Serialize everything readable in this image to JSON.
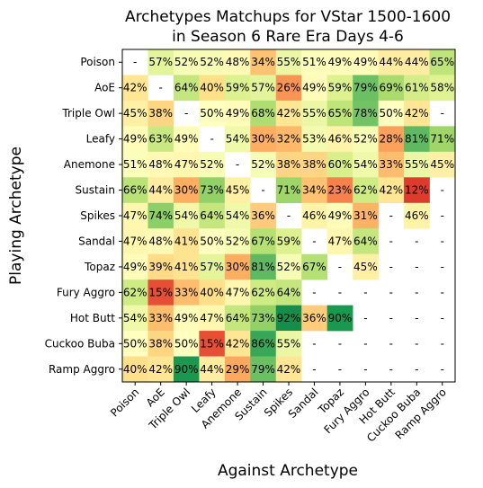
{
  "chart_data": {
    "type": "heatmap",
    "title": "Archetypes Matchups for VStar 1500-1600\nin Season 6 Rare Era Days 4-6",
    "xlabel": "Against Archetype",
    "ylabel": "Playing Archetype",
    "categories": [
      "Poison",
      "AoE",
      "Triple Owl",
      "Leafy",
      "Anemone",
      "Sustain",
      "Spikes",
      "Sandal",
      "Topaz",
      "Fury Aggro",
      "Hot Butt",
      "Cuckoo Buba",
      "Ramp Aggro"
    ],
    "value_range": [
      0,
      100
    ],
    "colormap": "RdYlGn",
    "missing_label": "-",
    "values": [
      [
        null,
        57,
        52,
        52,
        48,
        34,
        55,
        51,
        49,
        49,
        44,
        44,
        65
      ],
      [
        42,
        null,
        64,
        40,
        59,
        57,
        26,
        49,
        59,
        79,
        69,
        61,
        58
      ],
      [
        45,
        38,
        null,
        50,
        49,
        68,
        42,
        55,
        65,
        78,
        50,
        42,
        null
      ],
      [
        49,
        63,
        49,
        null,
        54,
        30,
        32,
        53,
        46,
        52,
        28,
        81,
        71
      ],
      [
        51,
        48,
        47,
        52,
        null,
        52,
        38,
        38,
        60,
        54,
        33,
        55,
        45
      ],
      [
        66,
        44,
        30,
        73,
        45,
        null,
        71,
        34,
        23,
        62,
        42,
        12,
        null
      ],
      [
        47,
        74,
        54,
        64,
        54,
        36,
        null,
        46,
        49,
        31,
        null,
        46,
        null
      ],
      [
        47,
        48,
        41,
        50,
        52,
        67,
        59,
        null,
        47,
        64,
        null,
        null,
        null
      ],
      [
        49,
        39,
        41,
        57,
        30,
        81,
        52,
        67,
        null,
        45,
        null,
        null,
        null
      ],
      [
        62,
        15,
        33,
        40,
        47,
        62,
        64,
        null,
        null,
        null,
        null,
        null,
        null
      ],
      [
        54,
        33,
        49,
        47,
        64,
        73,
        92,
        36,
        90,
        null,
        null,
        null,
        null
      ],
      [
        50,
        38,
        50,
        15,
        42,
        86,
        55,
        null,
        null,
        null,
        null,
        null,
        null
      ],
      [
        40,
        42,
        90,
        44,
        29,
        79,
        42,
        null,
        null,
        null,
        null,
        null,
        null
      ]
    ]
  }
}
